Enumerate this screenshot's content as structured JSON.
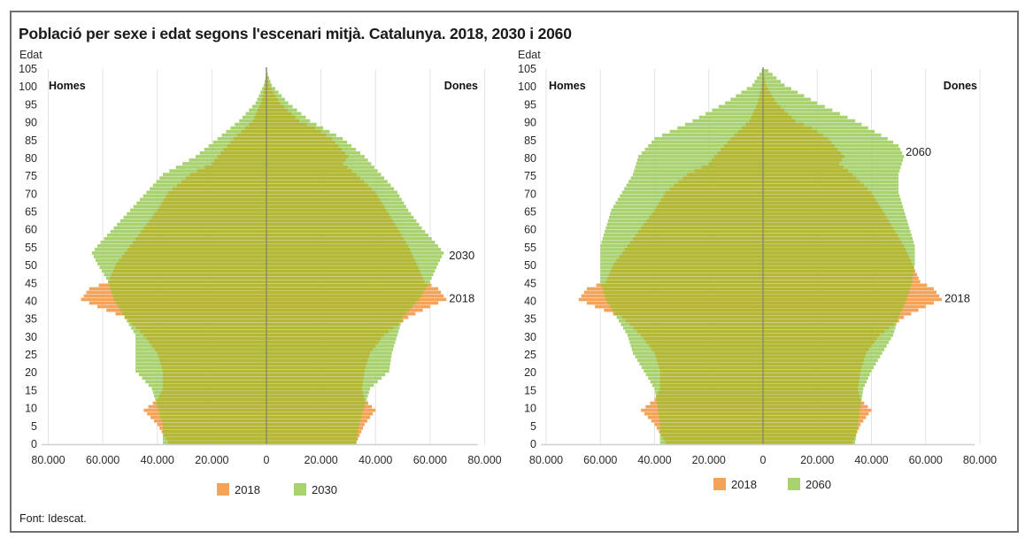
{
  "title": "Població per sexe i edat segons l'escenari mitjà. Catalunya. 2018, 2030 i 2060",
  "source": "Font: Idescat.",
  "colors": {
    "base_2018": "#f3a35a",
    "proj": "#a8d16f",
    "overlap": "#b5b836",
    "axis_line": "#8a8a8a",
    "grid": "#e3e3e3",
    "center": "#8c8a6a"
  },
  "chart_data": [
    {
      "type": "bar",
      "subtype": "population-pyramid",
      "ylabel": "Edat",
      "yticks": [
        "0",
        "5",
        "10",
        "15",
        "20",
        "25",
        "30",
        "35",
        "40",
        "45",
        "50",
        "55",
        "60",
        "65",
        "70",
        "75",
        "80",
        "85",
        "90",
        "95",
        "100",
        "105"
      ],
      "ylim": [
        0,
        105
      ],
      "xlim": [
        -80000,
        80000
      ],
      "xticks": [
        "80.000",
        "60.000",
        "40.000",
        "20.000",
        "0",
        "20.000",
        "40.000",
        "60.000",
        "80.000"
      ],
      "left_label": "Homes",
      "right_label": "Dones",
      "legend": [
        {
          "label": "2018",
          "color": "#f3a35a"
        },
        {
          "label": "2030",
          "color": "#a8d16f"
        }
      ],
      "legend_position": "bottom-center",
      "annotations": [
        {
          "text": "2030",
          "age": 53
        },
        {
          "text": "2018",
          "age": 41
        }
      ],
      "series": [
        {
          "name": "2018",
          "sex": "Homes",
          "ages": [
            0,
            5,
            9,
            12,
            15,
            20,
            25,
            30,
            35,
            38,
            40,
            43,
            45,
            50,
            55,
            60,
            65,
            70,
            75,
            78,
            80,
            85,
            90,
            95,
            100,
            103
          ],
          "values": [
            36000,
            40000,
            45000,
            40000,
            38000,
            38000,
            40000,
            45000,
            52000,
            62000,
            68000,
            65000,
            58000,
            55000,
            50000,
            45000,
            40000,
            36000,
            28000,
            20000,
            18000,
            12000,
            5000,
            2000,
            500,
            0
          ]
        },
        {
          "name": "2030",
          "sex": "Homes",
          "ages": [
            0,
            5,
            10,
            15,
            20,
            25,
            30,
            35,
            40,
            45,
            50,
            53,
            55,
            60,
            65,
            70,
            75,
            80,
            85,
            90,
            95,
            100,
            103
          ],
          "values": [
            38000,
            38000,
            40000,
            42000,
            48000,
            48000,
            48000,
            52000,
            56000,
            58000,
            62000,
            64000,
            62000,
            56000,
            50000,
            44000,
            38000,
            26000,
            18000,
            10000,
            4000,
            1000,
            0
          ]
        },
        {
          "name": "2018",
          "sex": "Dones",
          "ages": [
            0,
            5,
            9,
            12,
            15,
            20,
            25,
            30,
            35,
            38,
            40,
            43,
            45,
            50,
            55,
            60,
            65,
            70,
            75,
            78,
            80,
            85,
            88,
            90,
            95,
            100,
            104
          ],
          "values": [
            33000,
            36000,
            40000,
            36000,
            35000,
            36000,
            38000,
            43000,
            52000,
            60000,
            66000,
            63000,
            58000,
            55000,
            52000,
            48000,
            44000,
            40000,
            33000,
            28000,
            30000,
            24000,
            18000,
            12000,
            5000,
            1000,
            0
          ]
        },
        {
          "name": "2030",
          "sex": "Dones",
          "ages": [
            0,
            5,
            10,
            15,
            20,
            25,
            30,
            35,
            40,
            45,
            50,
            53,
            55,
            60,
            65,
            70,
            75,
            80,
            85,
            90,
            95,
            100,
            104
          ],
          "values": [
            33000,
            34000,
            36000,
            38000,
            45000,
            46000,
            48000,
            50000,
            56000,
            60000,
            63000,
            65000,
            63000,
            57000,
            52000,
            48000,
            42000,
            36000,
            28000,
            16000,
            8000,
            2000,
            0
          ]
        }
      ]
    },
    {
      "type": "bar",
      "subtype": "population-pyramid",
      "ylabel": "Edat",
      "yticks": [
        "0",
        "5",
        "10",
        "15",
        "20",
        "25",
        "30",
        "35",
        "40",
        "45",
        "50",
        "55",
        "60",
        "65",
        "70",
        "75",
        "80",
        "85",
        "90",
        "95",
        "100",
        "105"
      ],
      "ylim": [
        0,
        105
      ],
      "xlim": [
        -80000,
        80000
      ],
      "xticks": [
        "80.000",
        "60.000",
        "40.000",
        "20.000",
        "0",
        "20.000",
        "40.000",
        "60.000",
        "80.000"
      ],
      "left_label": "Homes",
      "right_label": "Dones",
      "legend": [
        {
          "label": "2018",
          "color": "#f3a35a"
        },
        {
          "label": "2060",
          "color": "#a8d16f"
        }
      ],
      "legend_position": "bottom-center",
      "annotations": [
        {
          "text": "2060",
          "age": 82
        },
        {
          "text": "2018",
          "age": 41
        }
      ],
      "series": [
        {
          "name": "2018",
          "sex": "Homes",
          "ages": [
            0,
            5,
            9,
            12,
            15,
            20,
            25,
            30,
            35,
            38,
            40,
            43,
            45,
            50,
            55,
            60,
            65,
            70,
            75,
            78,
            80,
            85,
            90,
            95,
            100,
            103
          ],
          "values": [
            36000,
            40000,
            45000,
            40000,
            38000,
            38000,
            40000,
            45000,
            52000,
            62000,
            68000,
            65000,
            58000,
            55000,
            50000,
            45000,
            40000,
            36000,
            28000,
            20000,
            18000,
            12000,
            5000,
            2000,
            500,
            0
          ]
        },
        {
          "name": "2060",
          "sex": "Homes",
          "ages": [
            0,
            5,
            10,
            15,
            20,
            25,
            30,
            35,
            40,
            45,
            50,
            55,
            60,
            65,
            70,
            75,
            80,
            85,
            90,
            95,
            100,
            104
          ],
          "values": [
            38000,
            38000,
            39000,
            40000,
            44000,
            48000,
            50000,
            54000,
            58000,
            60000,
            60000,
            60000,
            58000,
            56000,
            52000,
            48000,
            46000,
            40000,
            26000,
            14000,
            4000,
            500
          ]
        },
        {
          "name": "2018",
          "sex": "Dones",
          "ages": [
            0,
            5,
            9,
            12,
            15,
            20,
            25,
            30,
            35,
            38,
            40,
            43,
            45,
            50,
            55,
            60,
            65,
            70,
            75,
            78,
            80,
            85,
            88,
            90,
            95,
            100,
            104
          ],
          "values": [
            33000,
            36000,
            40000,
            36000,
            35000,
            36000,
            38000,
            43000,
            52000,
            60000,
            66000,
            63000,
            58000,
            55000,
            52000,
            48000,
            44000,
            40000,
            33000,
            28000,
            30000,
            24000,
            18000,
            12000,
            5000,
            1000,
            0
          ]
        },
        {
          "name": "2060",
          "sex": "Dones",
          "ages": [
            0,
            5,
            10,
            15,
            20,
            25,
            30,
            35,
            40,
            45,
            50,
            55,
            60,
            65,
            70,
            75,
            80,
            83,
            85,
            90,
            95,
            100,
            104
          ],
          "values": [
            34000,
            35000,
            36000,
            37000,
            40000,
            44000,
            48000,
            50000,
            53000,
            55000,
            56000,
            56000,
            54000,
            52000,
            50000,
            50000,
            52000,
            50000,
            46000,
            34000,
            20000,
            8000,
            2000
          ]
        }
      ]
    }
  ]
}
